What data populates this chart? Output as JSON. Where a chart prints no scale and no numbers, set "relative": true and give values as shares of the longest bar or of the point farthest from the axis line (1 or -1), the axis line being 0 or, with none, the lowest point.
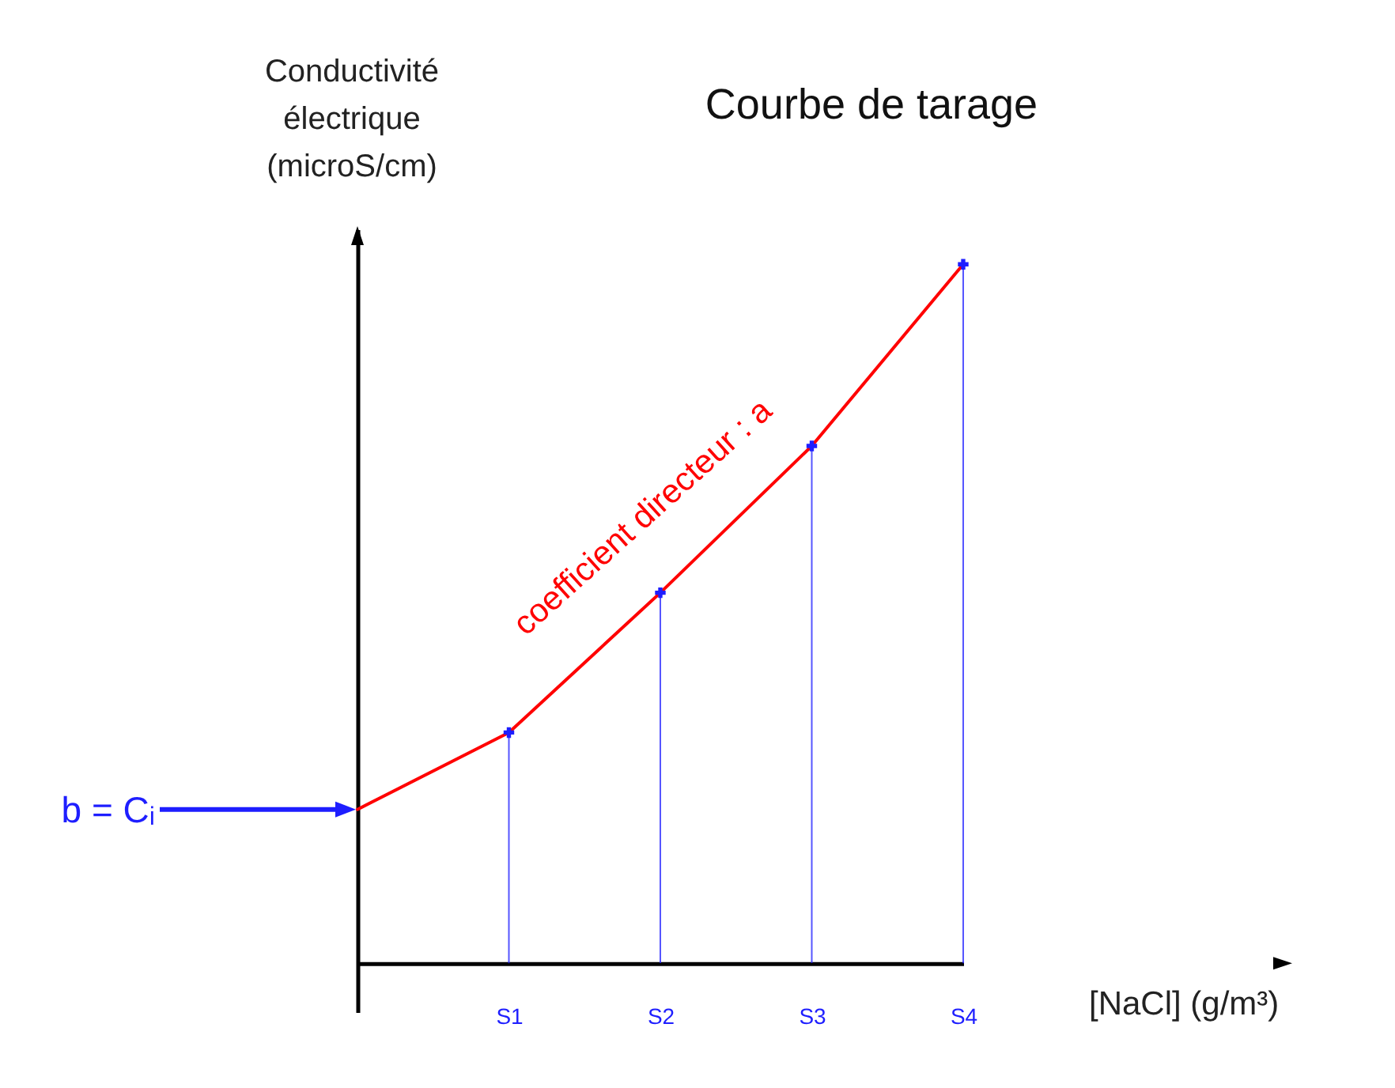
{
  "chart_data": {
    "type": "scatter",
    "title": "Courbe de tarage",
    "xlabel": "[NaCl] (g/m³)",
    "ylabel": "Conductivité électrique (microS/cm)",
    "relative": true,
    "tick_labels": "x",
    "categories": [
      null,
      "S1",
      "S2",
      "S3",
      "S4"
    ],
    "series": [
      {
        "type": "line",
        "color": "#ff0000",
        "values": [
          0.22,
          0.33,
          0.53,
          0.74,
          1
        ]
      },
      {
        "color": "#1e1eff",
        "marker": "cross",
        "values": [
          null,
          0.33,
          0.53,
          0.74,
          1
        ]
      }
    ],
    "annotations": [
      "coefficient directeur : a",
      "b = Cᵢ"
    ]
  }
}
